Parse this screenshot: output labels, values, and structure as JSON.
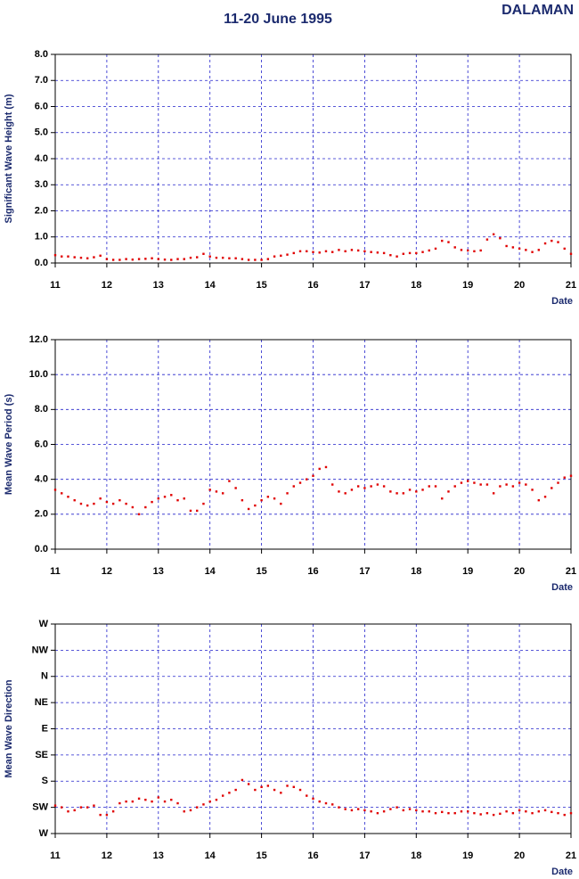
{
  "title": "11-20 June 1995",
  "station": "DALAMAN",
  "chart_data": [
    {
      "type": "scatter",
      "y_label": "Significant Wave Height (m)",
      "x_label": "Date",
      "color": "#e00000",
      "grid": true,
      "xlim": [
        11,
        21
      ],
      "xticks": [
        11,
        12,
        13,
        14,
        15,
        16,
        17,
        18,
        19,
        20,
        21
      ],
      "ylim": [
        0,
        8
      ],
      "yticks": [
        {
          "value": 0,
          "label": "0.0"
        },
        {
          "value": 1,
          "label": "1.0"
        },
        {
          "value": 2,
          "label": "2.0"
        },
        {
          "value": 3,
          "label": "3.0"
        },
        {
          "value": 4,
          "label": "4.0"
        },
        {
          "value": 5,
          "label": "5.0"
        },
        {
          "value": 6,
          "label": "6.0"
        },
        {
          "value": 7,
          "label": "7.0"
        },
        {
          "value": 8,
          "label": "8.0"
        }
      ],
      "x": [
        11,
        11.125,
        11.25,
        11.375,
        11.5,
        11.625,
        11.75,
        11.875,
        12,
        12.125,
        12.25,
        12.375,
        12.5,
        12.625,
        12.75,
        12.875,
        13,
        13.125,
        13.25,
        13.375,
        13.5,
        13.625,
        13.75,
        13.875,
        14,
        14.125,
        14.25,
        14.375,
        14.5,
        14.625,
        14.75,
        14.875,
        15,
        15.125,
        15.25,
        15.375,
        15.5,
        15.625,
        15.75,
        15.875,
        16,
        16.125,
        16.25,
        16.375,
        16.5,
        16.625,
        16.75,
        16.875,
        17,
        17.125,
        17.25,
        17.375,
        17.5,
        17.625,
        17.75,
        17.875,
        18,
        18.125,
        18.25,
        18.375,
        18.5,
        18.625,
        18.75,
        18.875,
        19,
        19.125,
        19.25,
        19.375,
        19.5,
        19.625,
        19.75,
        19.875,
        20,
        20.125,
        20.25,
        20.375,
        20.5,
        20.625,
        20.75,
        20.875,
        21
      ],
      "values": [
        0.3,
        0.25,
        0.25,
        0.22,
        0.2,
        0.18,
        0.22,
        0.28,
        0.15,
        0.12,
        0.12,
        0.15,
        0.13,
        0.15,
        0.16,
        0.18,
        0.15,
        0.13,
        0.12,
        0.15,
        0.15,
        0.2,
        0.22,
        0.35,
        0.25,
        0.2,
        0.2,
        0.18,
        0.18,
        0.15,
        0.12,
        0.12,
        0.12,
        0.15,
        0.25,
        0.28,
        0.32,
        0.38,
        0.45,
        0.45,
        0.42,
        0.4,
        0.45,
        0.42,
        0.5,
        0.45,
        0.5,
        0.48,
        0.45,
        0.42,
        0.4,
        0.38,
        0.3,
        0.25,
        0.35,
        0.38,
        0.38,
        0.42,
        0.48,
        0.55,
        0.85,
        0.8,
        0.6,
        0.5,
        0.48,
        0.45,
        0.48,
        0.9,
        1.1,
        0.95,
        0.65,
        0.6,
        0.55,
        0.5,
        0.42,
        0.5,
        0.75,
        0.85,
        0.8,
        0.55,
        0.35
      ]
    },
    {
      "type": "scatter",
      "y_label": "Mean Wave Period (s)",
      "x_label": "Date",
      "color": "#e00000",
      "grid": true,
      "xlim": [
        11,
        21
      ],
      "xticks": [
        11,
        12,
        13,
        14,
        15,
        16,
        17,
        18,
        19,
        20,
        21
      ],
      "ylim": [
        0,
        12
      ],
      "yticks": [
        {
          "value": 0,
          "label": "0.0"
        },
        {
          "value": 2,
          "label": "2.0"
        },
        {
          "value": 4,
          "label": "4.0"
        },
        {
          "value": 6,
          "label": "6.0"
        },
        {
          "value": 8,
          "label": "8.0"
        },
        {
          "value": 10,
          "label": "10.0"
        },
        {
          "value": 12,
          "label": "12.0"
        }
      ],
      "x": [
        11,
        11.125,
        11.25,
        11.375,
        11.5,
        11.625,
        11.75,
        11.875,
        12,
        12.125,
        12.25,
        12.375,
        12.5,
        12.625,
        12.75,
        12.875,
        13,
        13.125,
        13.25,
        13.375,
        13.5,
        13.625,
        13.75,
        13.875,
        14,
        14.125,
        14.25,
        14.375,
        14.5,
        14.625,
        14.75,
        14.875,
        15,
        15.125,
        15.25,
        15.375,
        15.5,
        15.625,
        15.75,
        15.875,
        16,
        16.125,
        16.25,
        16.375,
        16.5,
        16.625,
        16.75,
        16.875,
        17,
        17.125,
        17.25,
        17.375,
        17.5,
        17.625,
        17.75,
        17.875,
        18,
        18.125,
        18.25,
        18.375,
        18.5,
        18.625,
        18.75,
        18.875,
        19,
        19.125,
        19.25,
        19.375,
        19.5,
        19.625,
        19.75,
        19.875,
        20,
        20.125,
        20.25,
        20.375,
        20.5,
        20.625,
        20.75,
        20.875,
        21
      ],
      "values": [
        3.4,
        3.2,
        3.0,
        2.8,
        2.6,
        2.5,
        2.6,
        2.9,
        2.7,
        2.6,
        2.8,
        2.6,
        2.4,
        2.0,
        2.4,
        2.7,
        2.9,
        3.0,
        3.1,
        2.8,
        2.9,
        2.2,
        2.2,
        2.6,
        3.4,
        3.3,
        3.2,
        3.9,
        3.5,
        2.8,
        2.3,
        2.5,
        2.8,
        3.0,
        2.9,
        2.6,
        3.2,
        3.6,
        3.8,
        4.0,
        4.2,
        4.6,
        4.7,
        3.7,
        3.3,
        3.2,
        3.4,
        3.6,
        3.5,
        3.6,
        3.7,
        3.6,
        3.3,
        3.2,
        3.2,
        3.4,
        3.3,
        3.4,
        3.6,
        3.6,
        2.9,
        3.3,
        3.6,
        3.8,
        3.9,
        3.8,
        3.7,
        3.7,
        3.2,
        3.6,
        3.7,
        3.6,
        3.8,
        3.7,
        3.4,
        2.8,
        3.0,
        3.5,
        3.8,
        4.1,
        4.2
      ]
    },
    {
      "type": "scatter",
      "y_label": "Mean Wave Direction",
      "x_label": "Date",
      "color": "#e00000",
      "grid": true,
      "xlim": [
        11,
        21
      ],
      "xticks": [
        11,
        12,
        13,
        14,
        15,
        16,
        17,
        18,
        19,
        20,
        21
      ],
      "ylim": [
        270,
        -90
      ],
      "yticks": [
        {
          "value": 270,
          "label": "W"
        },
        {
          "value": 225,
          "label": "SW"
        },
        {
          "value": 180,
          "label": "S"
        },
        {
          "value": 135,
          "label": "SE"
        },
        {
          "value": 90,
          "label": "E"
        },
        {
          "value": 45,
          "label": "NE"
        },
        {
          "value": 0,
          "label": "N"
        },
        {
          "value": -45,
          "label": "NW"
        },
        {
          "value": -90,
          "label": "W"
        }
      ],
      "x": [
        11,
        11.125,
        11.25,
        11.375,
        11.5,
        11.625,
        11.75,
        11.875,
        12,
        12.125,
        12.25,
        12.375,
        12.5,
        12.625,
        12.75,
        12.875,
        13,
        13.125,
        13.25,
        13.375,
        13.5,
        13.625,
        13.75,
        13.875,
        14,
        14.125,
        14.25,
        14.375,
        14.5,
        14.625,
        14.75,
        14.875,
        15,
        15.125,
        15.25,
        15.375,
        15.5,
        15.625,
        15.75,
        15.875,
        16,
        16.125,
        16.25,
        16.375,
        16.5,
        16.625,
        16.75,
        16.875,
        17,
        17.125,
        17.25,
        17.375,
        17.5,
        17.625,
        17.75,
        17.875,
        18,
        18.125,
        18.25,
        18.375,
        18.5,
        18.625,
        18.75,
        18.875,
        19,
        19.125,
        19.25,
        19.375,
        19.5,
        19.625,
        19.75,
        19.875,
        20,
        20.125,
        20.25,
        20.375,
        20.5,
        20.625,
        20.75,
        20.875,
        21
      ],
      "values": [
        222,
        225,
        232,
        230,
        225,
        225,
        222,
        238,
        238,
        232,
        218,
        215,
        215,
        210,
        212,
        215,
        208,
        215,
        212,
        218,
        232,
        230,
        225,
        220,
        215,
        212,
        205,
        200,
        195,
        178,
        185,
        195,
        190,
        188,
        195,
        200,
        188,
        190,
        195,
        205,
        210,
        215,
        218,
        220,
        225,
        228,
        230,
        228,
        230,
        232,
        235,
        232,
        228,
        225,
        230,
        228,
        230,
        232,
        232,
        235,
        233,
        235,
        235,
        232,
        232,
        235,
        237,
        235,
        238,
        236,
        232,
        235,
        230,
        232,
        235,
        232,
        230,
        233,
        235,
        238,
        235
      ]
    }
  ]
}
